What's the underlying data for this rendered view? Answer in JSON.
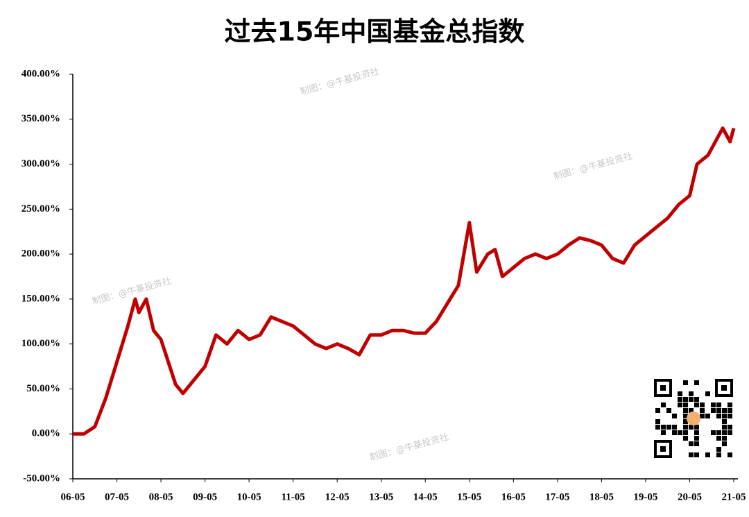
{
  "chart_data": {
    "type": "line",
    "title": "过去15年中国基金总指数",
    "annotations": [
      "制图：@牛基投资社",
      "制图：@牛基投资社",
      "制图：@牛基投资社",
      "制图：@牛基投资社"
    ],
    "x": [
      "06-05",
      "06-08",
      "06-11",
      "07-02",
      "07-05",
      "07-08",
      "07-10",
      "07-11",
      "08-01",
      "08-03",
      "08-05",
      "08-07",
      "08-09",
      "08-11",
      "09-02",
      "09-05",
      "09-08",
      "09-11",
      "10-02",
      "10-05",
      "10-08",
      "10-11",
      "11-02",
      "11-05",
      "11-08",
      "11-11",
      "12-02",
      "12-05",
      "12-08",
      "12-11",
      "13-02",
      "13-05",
      "13-08",
      "13-11",
      "14-02",
      "14-05",
      "14-08",
      "14-11",
      "15-02",
      "15-05",
      "15-07",
      "15-10",
      "15-12",
      "16-02",
      "16-05",
      "16-08",
      "16-11",
      "17-02",
      "17-05",
      "17-08",
      "17-11",
      "18-02",
      "18-05",
      "18-08",
      "18-11",
      "19-02",
      "19-05",
      "19-08",
      "19-11",
      "20-02",
      "20-05",
      "20-07",
      "20-10",
      "21-02",
      "21-04",
      "21-05"
    ],
    "series": [
      {
        "name": "中国基金总指数",
        "color": "#c00000",
        "values": [
          0,
          0,
          8,
          40,
          80,
          120,
          150,
          135,
          150,
          115,
          105,
          80,
          55,
          45,
          60,
          75,
          110,
          100,
          115,
          105,
          110,
          130,
          125,
          120,
          110,
          100,
          95,
          100,
          95,
          88,
          110,
          110,
          115,
          115,
          112,
          112,
          125,
          145,
          165,
          235,
          180,
          200,
          205,
          175,
          185,
          195,
          200,
          195,
          200,
          210,
          218,
          215,
          210,
          195,
          190,
          210,
          220,
          230,
          240,
          255,
          265,
          300,
          310,
          340,
          325,
          340
        ]
      }
    ],
    "xticks": [
      "06-05",
      "07-05",
      "08-05",
      "09-05",
      "10-05",
      "11-05",
      "12-05",
      "13-05",
      "14-05",
      "15-05",
      "16-05",
      "17-05",
      "18-05",
      "19-05",
      "20-05",
      "21-05"
    ],
    "ylim": [
      -50,
      400
    ],
    "yticks": [
      {
        "value": -50,
        "label": "-50.00%"
      },
      {
        "value": 0,
        "label": "0.00%"
      },
      {
        "value": 50,
        "label": "50.00%"
      },
      {
        "value": 100,
        "label": "100.00%"
      },
      {
        "value": 150,
        "label": "150.00%"
      },
      {
        "value": 200,
        "label": "200.00%"
      },
      {
        "value": 250,
        "label": "250.00%"
      },
      {
        "value": 300,
        "label": "300.00%"
      },
      {
        "value": 350,
        "label": "350.00%"
      },
      {
        "value": 400,
        "label": "400.00%"
      }
    ]
  }
}
